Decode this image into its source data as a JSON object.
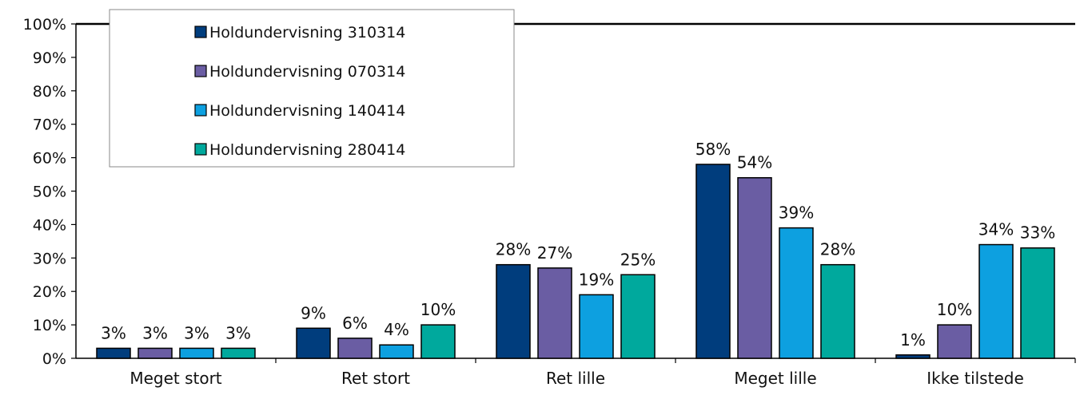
{
  "chart_data": {
    "type": "bar",
    "categories": [
      "Meget stort",
      "Ret stort",
      "Ret lille",
      "Meget lille",
      "Ikke tilstede"
    ],
    "series": [
      {
        "name": "Holdundervisning 310314",
        "color": "#003d7d",
        "values": [
          3,
          9,
          28,
          58,
          1
        ],
        "labels": [
          "3%",
          "9%",
          "28%",
          "58%",
          "1%"
        ]
      },
      {
        "name": "Holdundervisning 070314",
        "color": "#6a5da3",
        "values": [
          3,
          6,
          27,
          54,
          10
        ],
        "labels": [
          "3%",
          "6%",
          "27%",
          "54%",
          "10%"
        ]
      },
      {
        "name": "Holdundervisning 140414",
        "color": "#0da0e0",
        "values": [
          3,
          4,
          19,
          39,
          34
        ],
        "labels": [
          "3%",
          "4%",
          "19%",
          "39%",
          "34%"
        ]
      },
      {
        "name": "Holdundervisning 280414",
        "color": "#00a99d",
        "values": [
          3,
          10,
          25,
          28,
          33
        ],
        "labels": [
          "3%",
          "10%",
          "25%",
          "28%",
          "33%"
        ]
      }
    ],
    "ylim": [
      0,
      100
    ],
    "yticks": [
      "0%",
      "10%",
      "20%",
      "30%",
      "40%",
      "50%",
      "60%",
      "70%",
      "80%",
      "90%",
      "100%"
    ],
    "legend_position": "top-left",
    "grid": false
  }
}
